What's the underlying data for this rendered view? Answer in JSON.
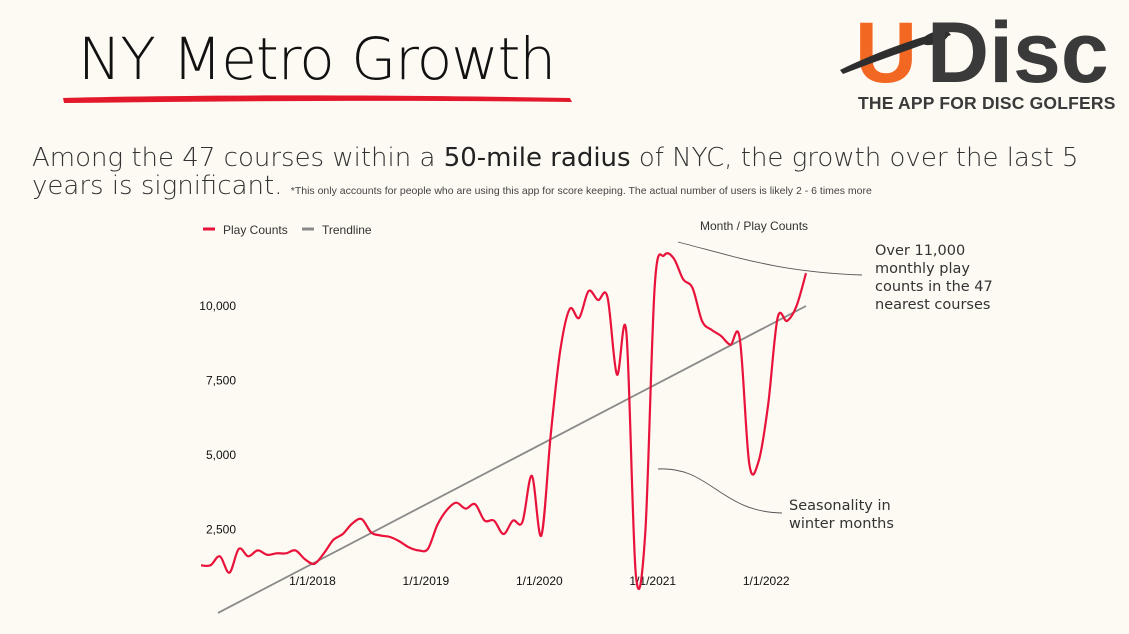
{
  "slide": {
    "title": "NY Metro Growth",
    "subtitle_text": "Among the 47 courses within a ",
    "subtitle_emphasis": "50-mile radius",
    "subtitle_rest": " of NYC, the growth over the last 5 years is significant. ",
    "footnote": "*This only accounts for people who are using this app for score keeping. The actual number of users is likely 2 - 6 times more",
    "underline_color": "#e3192b"
  },
  "logo": {
    "letter_u": "U",
    "letters_disc": "Disc",
    "tagline": "THE APP FOR DISC GOLFERS",
    "orange": "#f26722",
    "dark": "#3a3a3a",
    "icon": "disc-logo-icon"
  },
  "chart_data": {
    "type": "line",
    "title": "Month / Play Counts",
    "legend": [
      "Play Counts",
      "Trendline"
    ],
    "legend_position": "top-left",
    "colors": {
      "play_counts": "#e8123a",
      "trendline": "#8a8a8a"
    },
    "y_ticks": [
      "2,500",
      "5,000",
      "7,500",
      "10,000"
    ],
    "y_tick_values": [
      2500,
      5000,
      7500,
      10000
    ],
    "ylim": [
      0,
      12500
    ],
    "x_ticks": [
      "1/1/2018",
      "1/1/2019",
      "1/1/2020",
      "1/1/2021",
      "1/1/2022"
    ],
    "x_tick_values": [
      "2018-01",
      "2019-01",
      "2020-01",
      "2021-01",
      "2022-01"
    ],
    "xlim": [
      "2017-01",
      "2022-05"
    ],
    "grid": false,
    "series": [
      {
        "name": "Play Counts",
        "x": [
          "2017-01",
          "2017-02",
          "2017-03",
          "2017-04",
          "2017-05",
          "2017-06",
          "2017-07",
          "2017-08",
          "2017-09",
          "2017-10",
          "2017-11",
          "2017-12",
          "2018-01",
          "2018-02",
          "2018-03",
          "2018-04",
          "2018-05",
          "2018-06",
          "2018-07",
          "2018-08",
          "2018-09",
          "2018-10",
          "2018-11",
          "2018-12",
          "2019-01",
          "2019-02",
          "2019-03",
          "2019-04",
          "2019-05",
          "2019-06",
          "2019-07",
          "2019-08",
          "2019-09",
          "2019-10",
          "2019-11",
          "2019-12",
          "2020-01",
          "2020-02",
          "2020-03",
          "2020-04",
          "2020-05",
          "2020-06",
          "2020-07",
          "2020-08",
          "2020-09",
          "2020-10",
          "2020-11",
          "2020-12",
          "2021-01",
          "2021-02",
          "2021-03",
          "2021-04",
          "2021-05",
          "2021-06",
          "2021-07",
          "2021-08",
          "2021-09",
          "2021-10",
          "2021-11",
          "2021-12",
          "2022-01",
          "2022-02",
          "2022-03",
          "2022-04",
          "2022-05"
        ],
        "y": [
          1300,
          1300,
          1600,
          1050,
          1850,
          1600,
          1800,
          1650,
          1700,
          1700,
          1800,
          1500,
          1350,
          1700,
          2150,
          2350,
          2700,
          2850,
          2400,
          2300,
          2250,
          2100,
          1900,
          1800,
          1850,
          2650,
          3150,
          3400,
          3200,
          3350,
          2800,
          2800,
          2350,
          2800,
          2750,
          4300,
          2300,
          5700,
          8500,
          9900,
          9600,
          10500,
          10200,
          10300,
          7700,
          9100,
          1000,
          2400,
          10700,
          11700,
          11600,
          10900,
          10600,
          9500,
          9200,
          9000,
          8700,
          8900,
          4700,
          4800,
          6700,
          9600,
          9500,
          10000,
          11100
        ]
      },
      {
        "name": "Trendline",
        "x": [
          "2017-01",
          "2022-05"
        ],
        "y": [
          -300,
          10000
        ]
      }
    ],
    "annotations": [
      {
        "text_lines": [
          "Over 11,000",
          "monthly play",
          "counts in the 47",
          "nearest courses"
        ]
      },
      {
        "text_lines": [
          "Seasonality in",
          "winter months"
        ]
      }
    ]
  }
}
